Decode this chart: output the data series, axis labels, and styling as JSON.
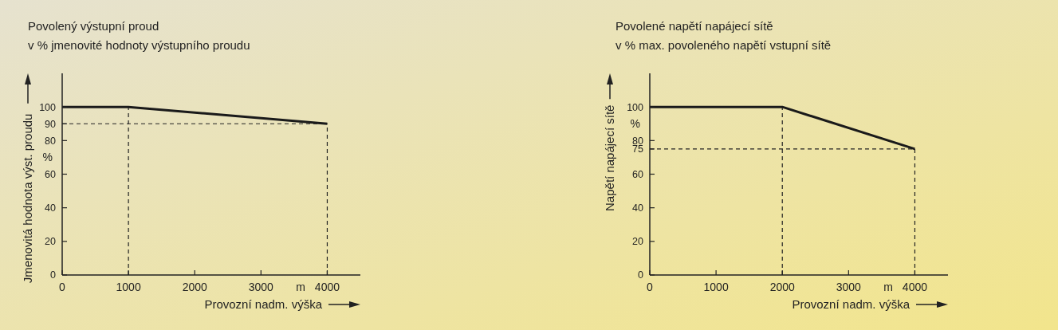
{
  "chart_data": [
    {
      "type": "line",
      "title": "Povolený výstupní proud",
      "subtitle": "v % jmenovité hodnoty výstupního proudu",
      "xlabel": "Provozní nadm. výška",
      "ylabel": "Jmenovitá hodnota výst. proudu",
      "annotations": [
        "%",
        "m"
      ],
      "x": [
        0,
        1000,
        4000
      ],
      "series": [
        {
          "color": "#1a1a1a",
          "values": [
            100,
            100,
            90
          ]
        }
      ],
      "xlim": [
        0,
        4500
      ],
      "ylim": [
        0,
        120
      ],
      "xticks": [
        0,
        1000,
        2000,
        3000,
        4000
      ],
      "yticks": [
        0,
        20,
        40,
        60,
        80,
        90,
        100
      ],
      "ref_lines": [
        {
          "axis": "x",
          "value": 1000,
          "line_style": "dashed"
        },
        {
          "axis": "y",
          "value": 90,
          "line_style": "dashed"
        },
        {
          "axis": "x",
          "value": 4000,
          "line_style": "dashed"
        }
      ],
      "grid": false,
      "line_style": "solid"
    },
    {
      "type": "line",
      "title": "Povolené napětí napájecí sítě",
      "subtitle": "v % max. povoleného napětí vstupní sítě",
      "xlabel": "Provozní nadm. výška",
      "ylabel": "Napětí napájecí sítě",
      "annotations": [
        "%",
        "m"
      ],
      "x": [
        0,
        2000,
        4000
      ],
      "series": [
        {
          "color": "#1a1a1a",
          "values": [
            100,
            100,
            75
          ]
        }
      ],
      "xlim": [
        0,
        4500
      ],
      "ylim": [
        0,
        120
      ],
      "xticks": [
        0,
        1000,
        2000,
        3000,
        4000
      ],
      "yticks": [
        0,
        20,
        40,
        60,
        75,
        80,
        100
      ],
      "ref_lines": [
        {
          "axis": "x",
          "value": 2000,
          "line_style": "dashed"
        },
        {
          "axis": "y",
          "value": 75,
          "line_style": "dashed"
        },
        {
          "axis": "x",
          "value": 4000,
          "line_style": "dashed"
        }
      ],
      "grid": false,
      "line_style": "solid"
    }
  ]
}
